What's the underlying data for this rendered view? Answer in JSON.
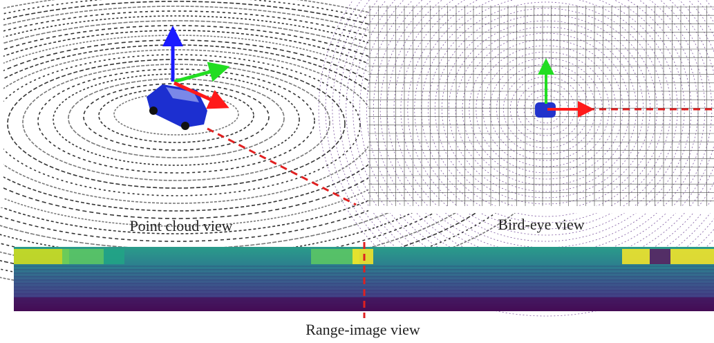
{
  "figure": {
    "point_cloud_caption": "Point cloud view",
    "bird_eye_caption": "Bird-eye view",
    "range_image_caption": "Range-image view"
  }
}
